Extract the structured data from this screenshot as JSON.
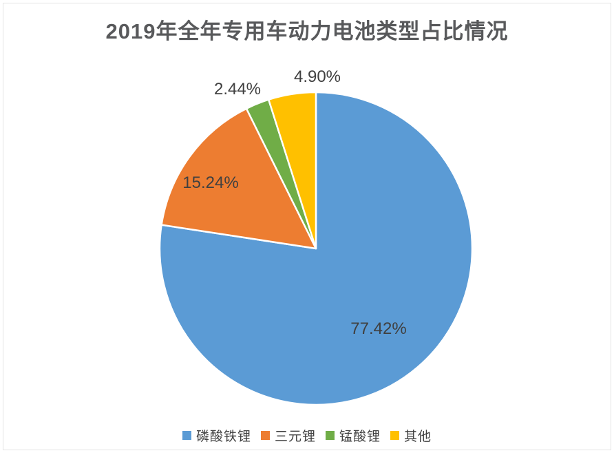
{
  "title": "2019年全年专用车动力电池类型占比情况",
  "chart_data": {
    "type": "pie",
    "title": "2019年全年专用车动力电池类型占比情况",
    "start_angle_deg": 0,
    "direction": "clockwise",
    "legend_position": "bottom",
    "slice_border_color": "#ffffff",
    "slices": [
      {
        "label": "磷酸铁锂",
        "value": 77.42,
        "display": "77.42%",
        "color": "#5B9BD5"
      },
      {
        "label": "三元锂",
        "value": 15.24,
        "display": "15.24%",
        "color": "#ED7D31"
      },
      {
        "label": "锰酸锂",
        "value": 2.44,
        "display": "2.44%",
        "color": "#70AD47"
      },
      {
        "label": "其他",
        "value": 4.9,
        "display": "4.90%",
        "color": "#FFC000"
      }
    ]
  }
}
